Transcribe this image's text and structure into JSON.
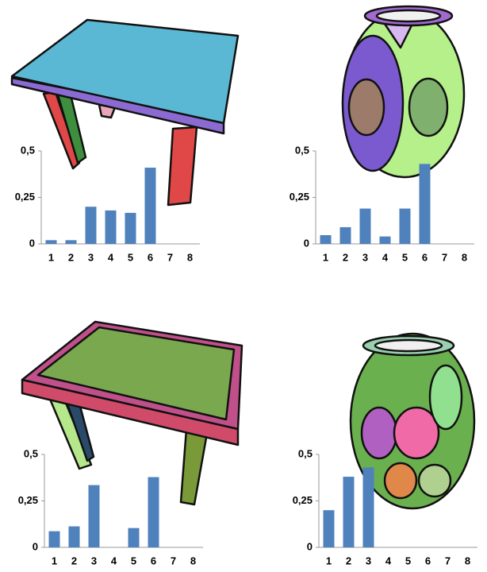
{
  "chart_data": [
    {
      "type": "bar",
      "categories": [
        "1",
        "2",
        "3",
        "4",
        "5",
        "6",
        "7",
        "8"
      ],
      "values": [
        0.02,
        0.02,
        0.2,
        0.18,
        0.167,
        0.41,
        0,
        0
      ],
      "color": "#4f81bd",
      "ylim": [
        0,
        0.5
      ],
      "yticks": [
        0,
        {
          "value": 0.25,
          "label": "0,25"
        },
        {
          "value": 0.5,
          "label": "0,5"
        }
      ]
    },
    {
      "type": "bar",
      "categories": [
        "1",
        "2",
        "3",
        "4",
        "5",
        "6",
        "7",
        "8"
      ],
      "values": [
        0.047,
        0.09,
        0.19,
        0.04,
        0.19,
        0.43,
        0,
        0
      ],
      "color": "#4f81bd",
      "ylim": [
        0,
        0.5
      ],
      "yticks": [
        0,
        {
          "value": 0.25,
          "label": "0,25"
        },
        {
          "value": 0.5,
          "label": "0,5"
        }
      ]
    },
    {
      "type": "bar",
      "categories": [
        "1",
        "2",
        "3",
        "4",
        "5",
        "6",
        "7",
        "8"
      ],
      "values": [
        0.087,
        0.113,
        0.335,
        0,
        0.104,
        0.378,
        0,
        0
      ],
      "color": "#4f81bd",
      "ylim": [
        0,
        0.5
      ],
      "yticks": [
        0,
        {
          "value": 0.25,
          "label": "0,25"
        },
        {
          "value": 0.5,
          "label": "0,5"
        }
      ]
    },
    {
      "type": "bar",
      "categories": [
        "1",
        "2",
        "3",
        "4",
        "5",
        "6",
        "7",
        "8"
      ],
      "values": [
        0.2,
        0.38,
        0.43,
        0,
        0,
        0,
        0,
        0
      ],
      "color": "#4f81bd",
      "ylim": [
        0,
        0.5
      ],
      "yticks": [
        0,
        {
          "value": 0.25,
          "label": "0,25"
        },
        {
          "value": 0.5,
          "label": "0,5"
        }
      ]
    }
  ]
}
